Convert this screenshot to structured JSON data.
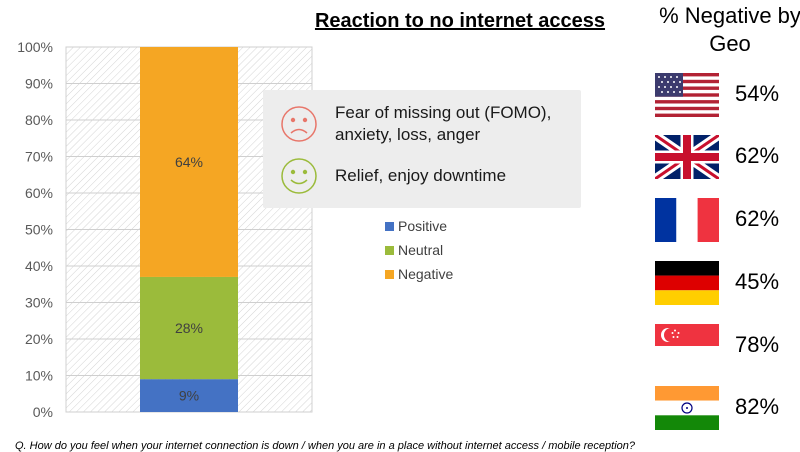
{
  "chart_data": {
    "type": "bar",
    "stacked": true,
    "title": "Reaction to no internet access",
    "categories": [
      ""
    ],
    "series": [
      {
        "name": "Positive",
        "values": [
          9
        ],
        "label": "9%",
        "color": "#4472c4"
      },
      {
        "name": "Neutral",
        "values": [
          28
        ],
        "label": "28%",
        "color": "#9bbb3b"
      },
      {
        "name": "Negative",
        "values": [
          64
        ],
        "label": "64%",
        "color": "#f5a623"
      }
    ],
    "ylim": [
      0,
      100
    ],
    "yticks": [
      "0%",
      "10%",
      "20%",
      "30%",
      "40%",
      "50%",
      "60%",
      "70%",
      "80%",
      "90%",
      "100%"
    ],
    "xlabel": "",
    "ylabel": "",
    "grid": true,
    "legend": "right"
  },
  "callout": {
    "items": [
      {
        "text": "Fear of missing out (FOMO), anxiety, loss, anger",
        "face": "sad-face-icon",
        "color": "#e8766a"
      },
      {
        "text": "Relief, enjoy downtime",
        "face": "happy-face-icon",
        "color": "#9bbb3b"
      }
    ]
  },
  "geo": {
    "title": "% Negative by Geo",
    "rows": [
      {
        "flag": "usa-flag-icon",
        "value": "54%"
      },
      {
        "flag": "uk-flag-icon",
        "value": "62%"
      },
      {
        "flag": "france-flag-icon",
        "value": "62%"
      },
      {
        "flag": "germany-flag-icon",
        "value": "45%"
      },
      {
        "flag": "singapore-flag-icon",
        "value": "78%"
      },
      {
        "flag": "india-flag-icon",
        "value": "82%"
      }
    ]
  },
  "footnote": "Q. How do you feel when your internet connection is down / when you are in a place without internet access / mobile reception?"
}
